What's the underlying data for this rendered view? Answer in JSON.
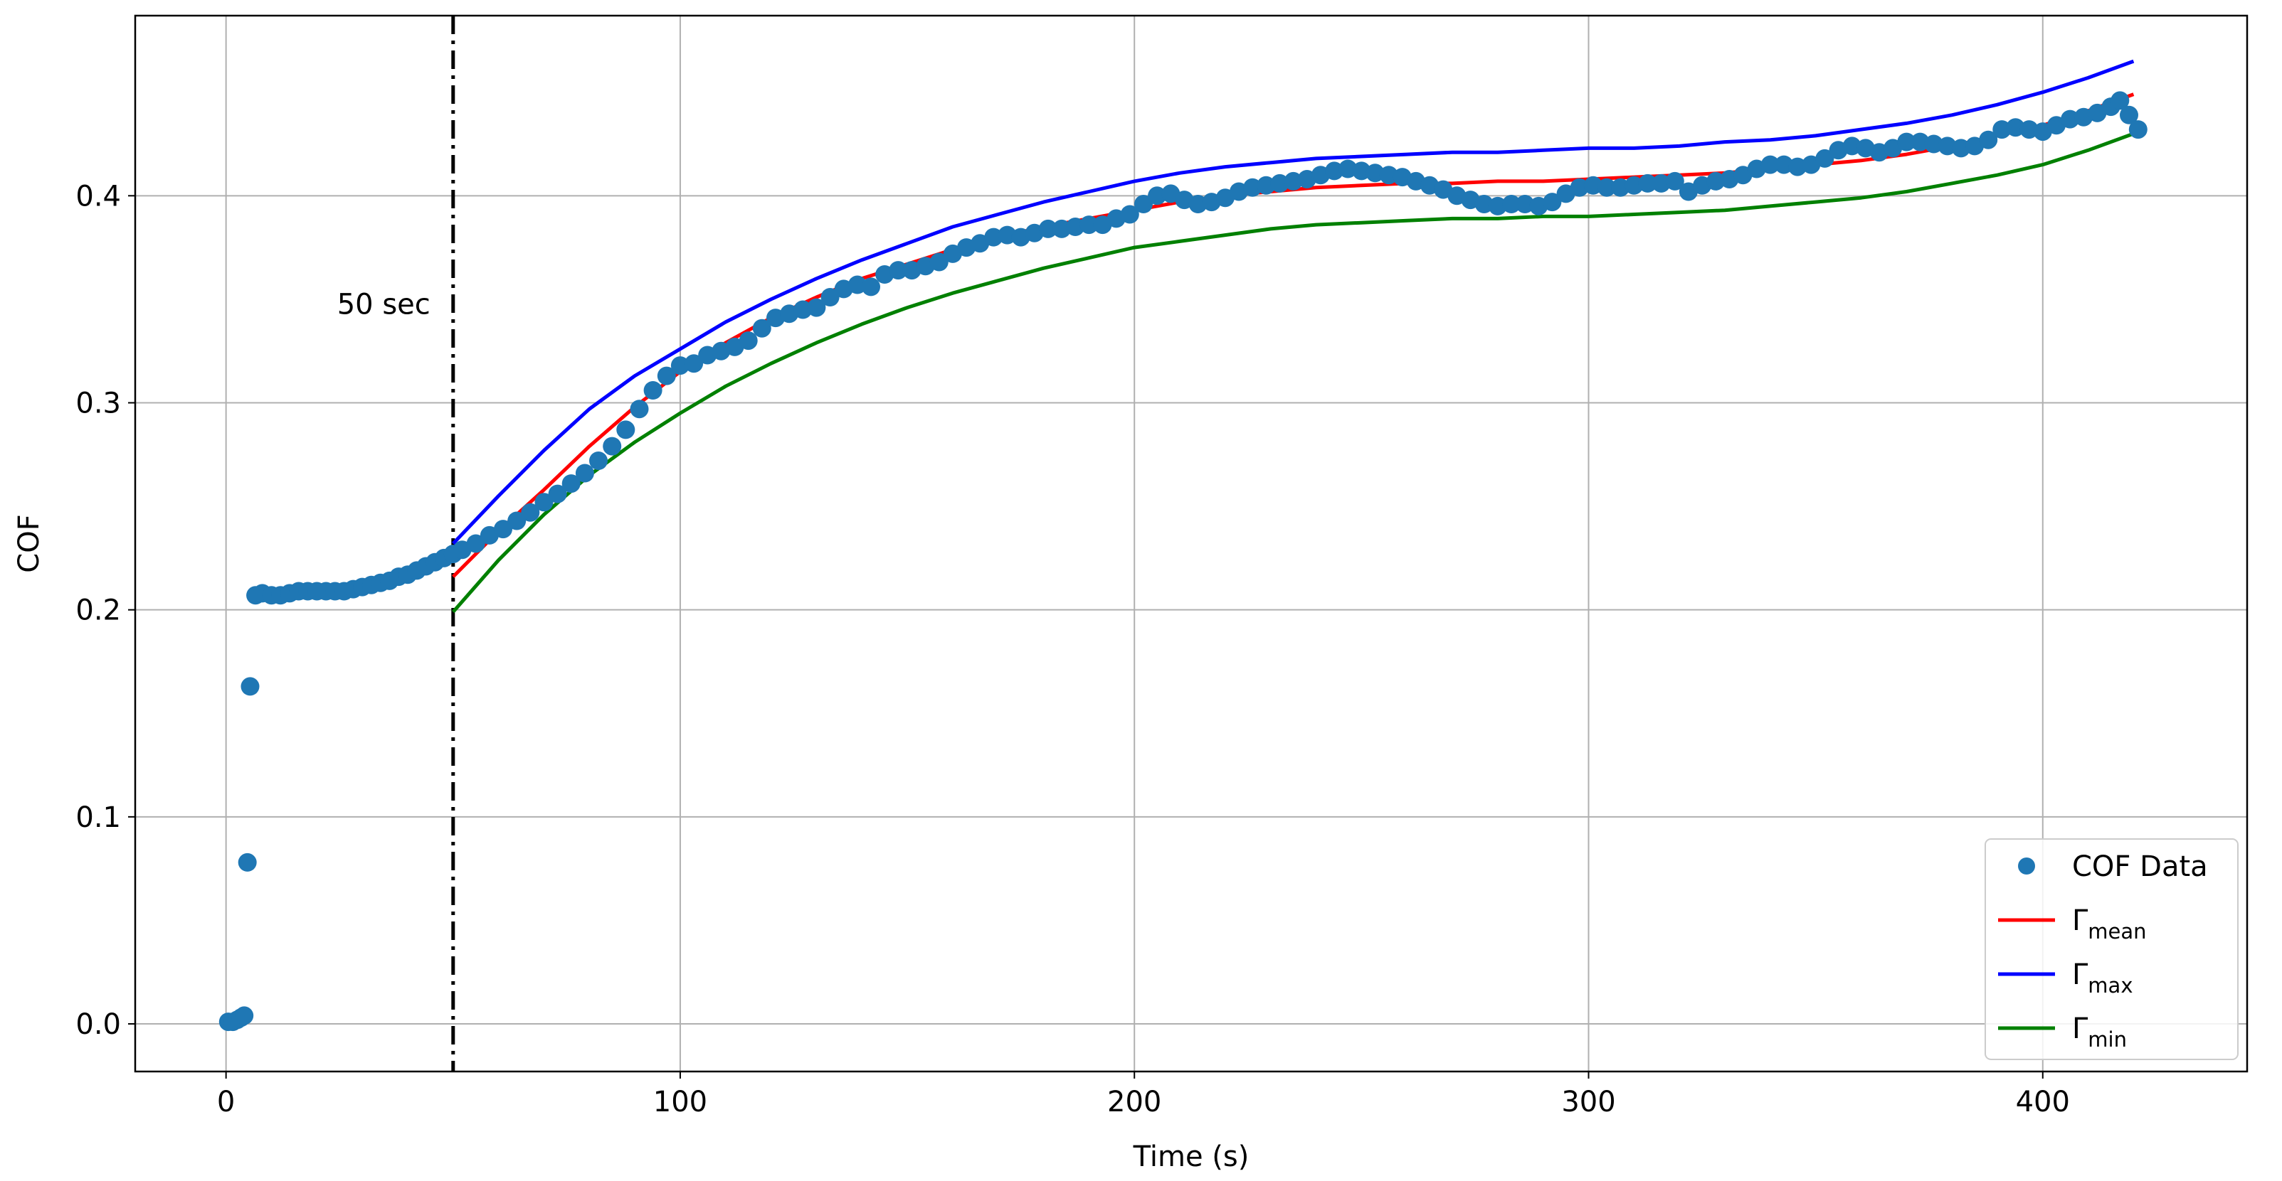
{
  "chart_data": {
    "type": "scatter",
    "xlabel": "Time (s)",
    "ylabel": "COF",
    "xlim": [
      -20,
      445
    ],
    "ylim": [
      -0.023,
      0.487
    ],
    "xticks": [
      0,
      100,
      200,
      300,
      400
    ],
    "yticks": [
      0.0,
      0.1,
      0.2,
      0.3,
      0.4
    ],
    "xtick_labels": [
      "0",
      "100",
      "200",
      "300",
      "400"
    ],
    "ytick_labels": [
      "0.0",
      "0.1",
      "0.2",
      "0.3",
      "0.4"
    ],
    "grid": true,
    "legend_position": "lower-right",
    "vline": {
      "x": 50,
      "label": "50 sec",
      "style": "dash-dot",
      "color": "#000000"
    },
    "scatter": {
      "name": "COF Data",
      "color": "#1f77b4",
      "points": [
        [
          0.5,
          0.001
        ],
        [
          1.5,
          0.001
        ],
        [
          2.5,
          0.002
        ],
        [
          3.3,
          0.003
        ],
        [
          4.0,
          0.004
        ],
        [
          4.7,
          0.078
        ],
        [
          5.3,
          0.163
        ],
        [
          6.5,
          0.207
        ],
        [
          8,
          0.208
        ],
        [
          10,
          0.207
        ],
        [
          12,
          0.207
        ],
        [
          14,
          0.208
        ],
        [
          16,
          0.209
        ],
        [
          18,
          0.209
        ],
        [
          20,
          0.209
        ],
        [
          22,
          0.209
        ],
        [
          24,
          0.209
        ],
        [
          26,
          0.209
        ],
        [
          28,
          0.21
        ],
        [
          30,
          0.211
        ],
        [
          32,
          0.212
        ],
        [
          34,
          0.213
        ],
        [
          36,
          0.214
        ],
        [
          38,
          0.216
        ],
        [
          40,
          0.217
        ],
        [
          42,
          0.219
        ],
        [
          44,
          0.221
        ],
        [
          46,
          0.223
        ],
        [
          48,
          0.225
        ],
        [
          50,
          0.227
        ],
        [
          52,
          0.229
        ],
        [
          55,
          0.232
        ],
        [
          58,
          0.236
        ],
        [
          61,
          0.239
        ],
        [
          64,
          0.243
        ],
        [
          67,
          0.247
        ],
        [
          70,
          0.252
        ],
        [
          73,
          0.256
        ],
        [
          76,
          0.261
        ],
        [
          79,
          0.266
        ],
        [
          82,
          0.272
        ],
        [
          85,
          0.279
        ],
        [
          88,
          0.287
        ],
        [
          91,
          0.297
        ],
        [
          94,
          0.306
        ],
        [
          97,
          0.313
        ],
        [
          100,
          0.318
        ],
        [
          103,
          0.319
        ],
        [
          106,
          0.323
        ],
        [
          109,
          0.325
        ],
        [
          112,
          0.327
        ],
        [
          115,
          0.33
        ],
        [
          118,
          0.336
        ],
        [
          121,
          0.341
        ],
        [
          124,
          0.343
        ],
        [
          127,
          0.345
        ],
        [
          130,
          0.346
        ],
        [
          133,
          0.351
        ],
        [
          136,
          0.355
        ],
        [
          139,
          0.357
        ],
        [
          142,
          0.356
        ],
        [
          145,
          0.362
        ],
        [
          148,
          0.364
        ],
        [
          151,
          0.364
        ],
        [
          154,
          0.366
        ],
        [
          157,
          0.368
        ],
        [
          160,
          0.372
        ],
        [
          163,
          0.375
        ],
        [
          166,
          0.377
        ],
        [
          169,
          0.38
        ],
        [
          172,
          0.381
        ],
        [
          175,
          0.38
        ],
        [
          178,
          0.382
        ],
        [
          181,
          0.384
        ],
        [
          184,
          0.384
        ],
        [
          187,
          0.385
        ],
        [
          190,
          0.386
        ],
        [
          193,
          0.386
        ],
        [
          196,
          0.389
        ],
        [
          199,
          0.391
        ],
        [
          202,
          0.396
        ],
        [
          205,
          0.4
        ],
        [
          208,
          0.401
        ],
        [
          211,
          0.398
        ],
        [
          214,
          0.396
        ],
        [
          217,
          0.397
        ],
        [
          220,
          0.399
        ],
        [
          223,
          0.402
        ],
        [
          226,
          0.404
        ],
        [
          229,
          0.405
        ],
        [
          232,
          0.406
        ],
        [
          235,
          0.407
        ],
        [
          238,
          0.408
        ],
        [
          241,
          0.41
        ],
        [
          244,
          0.412
        ],
        [
          247,
          0.413
        ],
        [
          250,
          0.412
        ],
        [
          253,
          0.411
        ],
        [
          256,
          0.41
        ],
        [
          259,
          0.409
        ],
        [
          262,
          0.407
        ],
        [
          265,
          0.405
        ],
        [
          268,
          0.403
        ],
        [
          271,
          0.4
        ],
        [
          274,
          0.398
        ],
        [
          277,
          0.396
        ],
        [
          280,
          0.395
        ],
        [
          283,
          0.396
        ],
        [
          286,
          0.396
        ],
        [
          289,
          0.395
        ],
        [
          292,
          0.397
        ],
        [
          295,
          0.401
        ],
        [
          298,
          0.404
        ],
        [
          301,
          0.405
        ],
        [
          304,
          0.404
        ],
        [
          307,
          0.404
        ],
        [
          310,
          0.405
        ],
        [
          313,
          0.406
        ],
        [
          316,
          0.406
        ],
        [
          319,
          0.407
        ],
        [
          322,
          0.402
        ],
        [
          325,
          0.405
        ],
        [
          328,
          0.407
        ],
        [
          331,
          0.408
        ],
        [
          334,
          0.41
        ],
        [
          337,
          0.413
        ],
        [
          340,
          0.415
        ],
        [
          343,
          0.415
        ],
        [
          346,
          0.414
        ],
        [
          349,
          0.415
        ],
        [
          352,
          0.418
        ],
        [
          355,
          0.422
        ],
        [
          358,
          0.424
        ],
        [
          361,
          0.423
        ],
        [
          364,
          0.421
        ],
        [
          367,
          0.423
        ],
        [
          370,
          0.426
        ],
        [
          373,
          0.426
        ],
        [
          376,
          0.425
        ],
        [
          379,
          0.424
        ],
        [
          382,
          0.423
        ],
        [
          385,
          0.424
        ],
        [
          388,
          0.427
        ],
        [
          391,
          0.432
        ],
        [
          394,
          0.433
        ],
        [
          397,
          0.432
        ],
        [
          400,
          0.431
        ],
        [
          403,
          0.434
        ],
        [
          406,
          0.437
        ],
        [
          409,
          0.438
        ],
        [
          412,
          0.44
        ],
        [
          415,
          0.443
        ],
        [
          417,
          0.446
        ],
        [
          419,
          0.439
        ],
        [
          421,
          0.432
        ]
      ]
    },
    "series": [
      {
        "name": "Γmean",
        "color": "#ff0000",
        "x": [
          50,
          60,
          70,
          80,
          90,
          100,
          110,
          120,
          130,
          140,
          150,
          160,
          170,
          180,
          190,
          200,
          210,
          220,
          230,
          240,
          250,
          260,
          270,
          280,
          290,
          300,
          310,
          320,
          330,
          340,
          350,
          360,
          370,
          380,
          390,
          400,
          410,
          420
        ],
        "y": [
          0.216,
          0.238,
          0.258,
          0.279,
          0.298,
          0.315,
          0.329,
          0.341,
          0.351,
          0.36,
          0.367,
          0.374,
          0.38,
          0.385,
          0.389,
          0.393,
          0.397,
          0.4,
          0.402,
          0.404,
          0.405,
          0.406,
          0.406,
          0.407,
          0.407,
          0.408,
          0.409,
          0.41,
          0.411,
          0.413,
          0.415,
          0.417,
          0.42,
          0.424,
          0.429,
          0.434,
          0.441,
          0.449
        ]
      },
      {
        "name": "Γmax",
        "color": "#0000ff",
        "x": [
          50,
          60,
          70,
          80,
          90,
          100,
          110,
          120,
          130,
          140,
          150,
          160,
          170,
          180,
          190,
          200,
          210,
          220,
          230,
          240,
          250,
          260,
          270,
          280,
          290,
          300,
          310,
          320,
          330,
          340,
          350,
          360,
          370,
          380,
          390,
          400,
          410,
          420
        ],
        "y": [
          0.232,
          0.255,
          0.277,
          0.297,
          0.313,
          0.326,
          0.339,
          0.35,
          0.36,
          0.369,
          0.377,
          0.385,
          0.391,
          0.397,
          0.402,
          0.407,
          0.411,
          0.414,
          0.416,
          0.418,
          0.419,
          0.42,
          0.421,
          0.421,
          0.422,
          0.423,
          0.423,
          0.424,
          0.426,
          0.427,
          0.429,
          0.432,
          0.435,
          0.439,
          0.444,
          0.45,
          0.457,
          0.465
        ]
      },
      {
        "name": "Γmin",
        "color": "#008000",
        "x": [
          50,
          60,
          70,
          80,
          90,
          100,
          110,
          120,
          130,
          140,
          150,
          160,
          170,
          180,
          190,
          200,
          210,
          220,
          230,
          240,
          250,
          260,
          270,
          280,
          290,
          300,
          310,
          320,
          330,
          340,
          350,
          360,
          370,
          380,
          390,
          400,
          410,
          420
        ],
        "y": [
          0.199,
          0.224,
          0.246,
          0.265,
          0.281,
          0.295,
          0.308,
          0.319,
          0.329,
          0.338,
          0.346,
          0.353,
          0.359,
          0.365,
          0.37,
          0.375,
          0.378,
          0.381,
          0.384,
          0.386,
          0.387,
          0.388,
          0.389,
          0.389,
          0.39,
          0.39,
          0.391,
          0.392,
          0.393,
          0.395,
          0.397,
          0.399,
          0.402,
          0.406,
          0.41,
          0.415,
          0.422,
          0.43
        ]
      }
    ],
    "legend": [
      {
        "type": "scatter",
        "label": "COF Data",
        "color": "#1f77b4"
      },
      {
        "type": "line",
        "label": "Γ",
        "sub": "mean",
        "color": "#ff0000"
      },
      {
        "type": "line",
        "label": "Γ",
        "sub": "max",
        "color": "#0000ff"
      },
      {
        "type": "line",
        "label": "Γ",
        "sub": "min",
        "color": "#008000"
      }
    ]
  }
}
